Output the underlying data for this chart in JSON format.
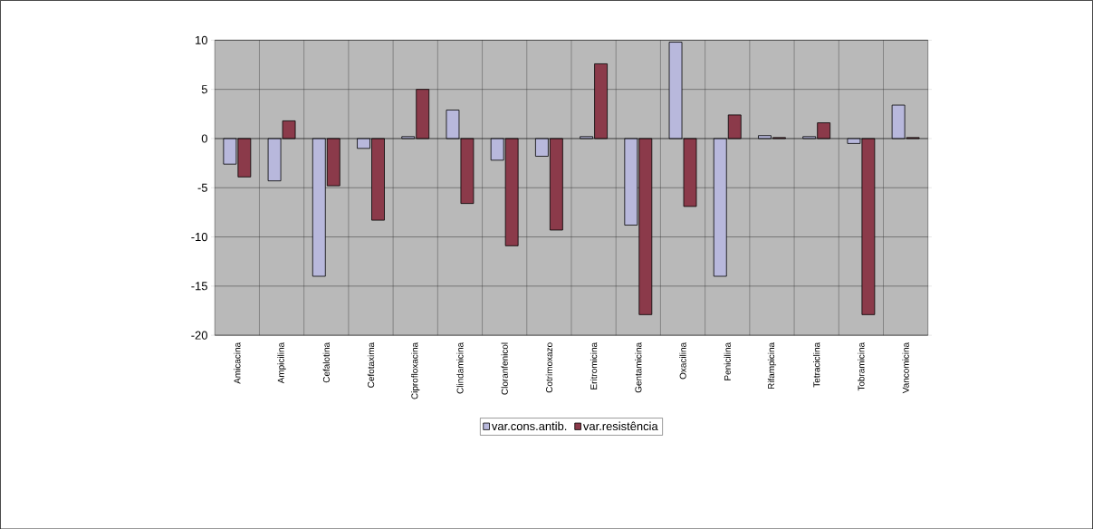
{
  "chart_data": {
    "type": "bar",
    "categories": [
      "Amicacina",
      "Ampicilina",
      "Cefalotina",
      "Cefotaxima",
      "Ciprofloxacina",
      "Clindamicina",
      "Cloranfenicol",
      "Cotrimoxazo",
      "Eritromicina",
      "Gentamicina",
      "Oxacilina",
      "Penicilina",
      "Rifampicina",
      "Tetraciclina",
      "Tobramicina",
      "Vancomicina"
    ],
    "series": [
      {
        "name": "var.cons.antib.",
        "color": "#b8b8dc",
        "values": [
          -2.6,
          -4.3,
          -14,
          -1,
          0.2,
          2.9,
          -2.2,
          -1.8,
          0.2,
          -8.8,
          9.8,
          -14,
          0.3,
          0.2,
          -0.5,
          3.4
        ]
      },
      {
        "name": "var.resistência",
        "color": "#8b3a4a",
        "values": [
          -3.9,
          1.8,
          -4.8,
          -8.3,
          5,
          -6.6,
          -10.9,
          -9.3,
          7.6,
          -17.9,
          -6.9,
          2.4,
          0.1,
          1.6,
          -17.9,
          0.1
        ]
      }
    ],
    "ylim": [
      -20,
      10
    ],
    "yticks": [
      -20,
      -15,
      -10,
      -5,
      0,
      5,
      10
    ],
    "grid": true,
    "legend": "bottom"
  }
}
